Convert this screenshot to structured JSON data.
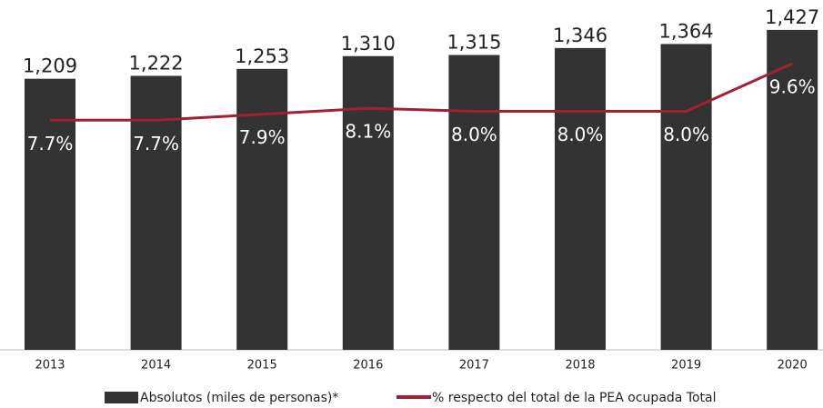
{
  "chart_data": {
    "type": "bar",
    "categories": [
      "2013",
      "2014",
      "2015",
      "2016",
      "2017",
      "2018",
      "2019",
      "2020"
    ],
    "ylim": [
      0,
      1463
    ],
    "y2lim": [
      0,
      11
    ],
    "series": [
      {
        "name": "Absolutos (miles de personas)*",
        "type": "bar",
        "color": "#333333",
        "values": [
          1209,
          1222,
          1253,
          1310,
          1315,
          1346,
          1364,
          1427
        ],
        "value_labels": [
          "1,209",
          "1,222",
          "1,253",
          "1,310",
          "1,315",
          "1,346",
          "1,364",
          "1,427"
        ]
      },
      {
        "name": "% respecto del total de la PEA ocupada Total",
        "type": "line",
        "axis": "y2",
        "color": "#a31f34",
        "values": [
          7.7,
          7.7,
          7.9,
          8.1,
          8.0,
          8.0,
          8.0,
          9.6
        ],
        "value_labels": [
          "7.7%",
          "7.7%",
          "7.9%",
          "8.1%",
          "8.0%",
          "8.0%",
          "8.0%",
          "9.6%"
        ]
      }
    ]
  }
}
